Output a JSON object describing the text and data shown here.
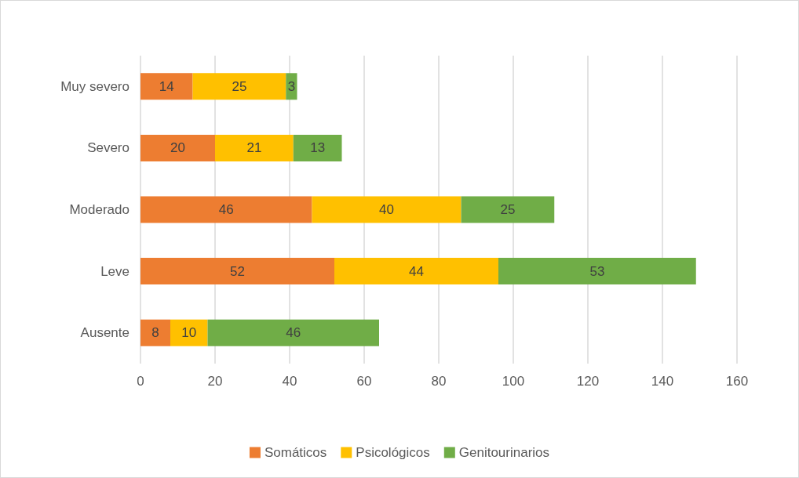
{
  "chart_data": {
    "type": "bar",
    "orientation": "horizontal",
    "stacked": true,
    "categories": [
      "Muy severo",
      "Severo",
      "Moderado",
      "Leve",
      "Ausente"
    ],
    "series": [
      {
        "name": "Somáticos",
        "color": "#ed7d31",
        "values": [
          14,
          20,
          46,
          52,
          8
        ]
      },
      {
        "name": "Psicológicos",
        "color": "#ffc000",
        "values": [
          25,
          21,
          40,
          44,
          10
        ]
      },
      {
        "name": "Genitourinarios",
        "color": "#70ad47",
        "values": [
          3,
          13,
          25,
          53,
          46
        ]
      }
    ],
    "xlim": [
      0,
      160
    ],
    "xticks": [
      0,
      20,
      40,
      60,
      80,
      100,
      120,
      140,
      160
    ],
    "grid": "x",
    "legend": "bottom",
    "data_labels": true
  }
}
